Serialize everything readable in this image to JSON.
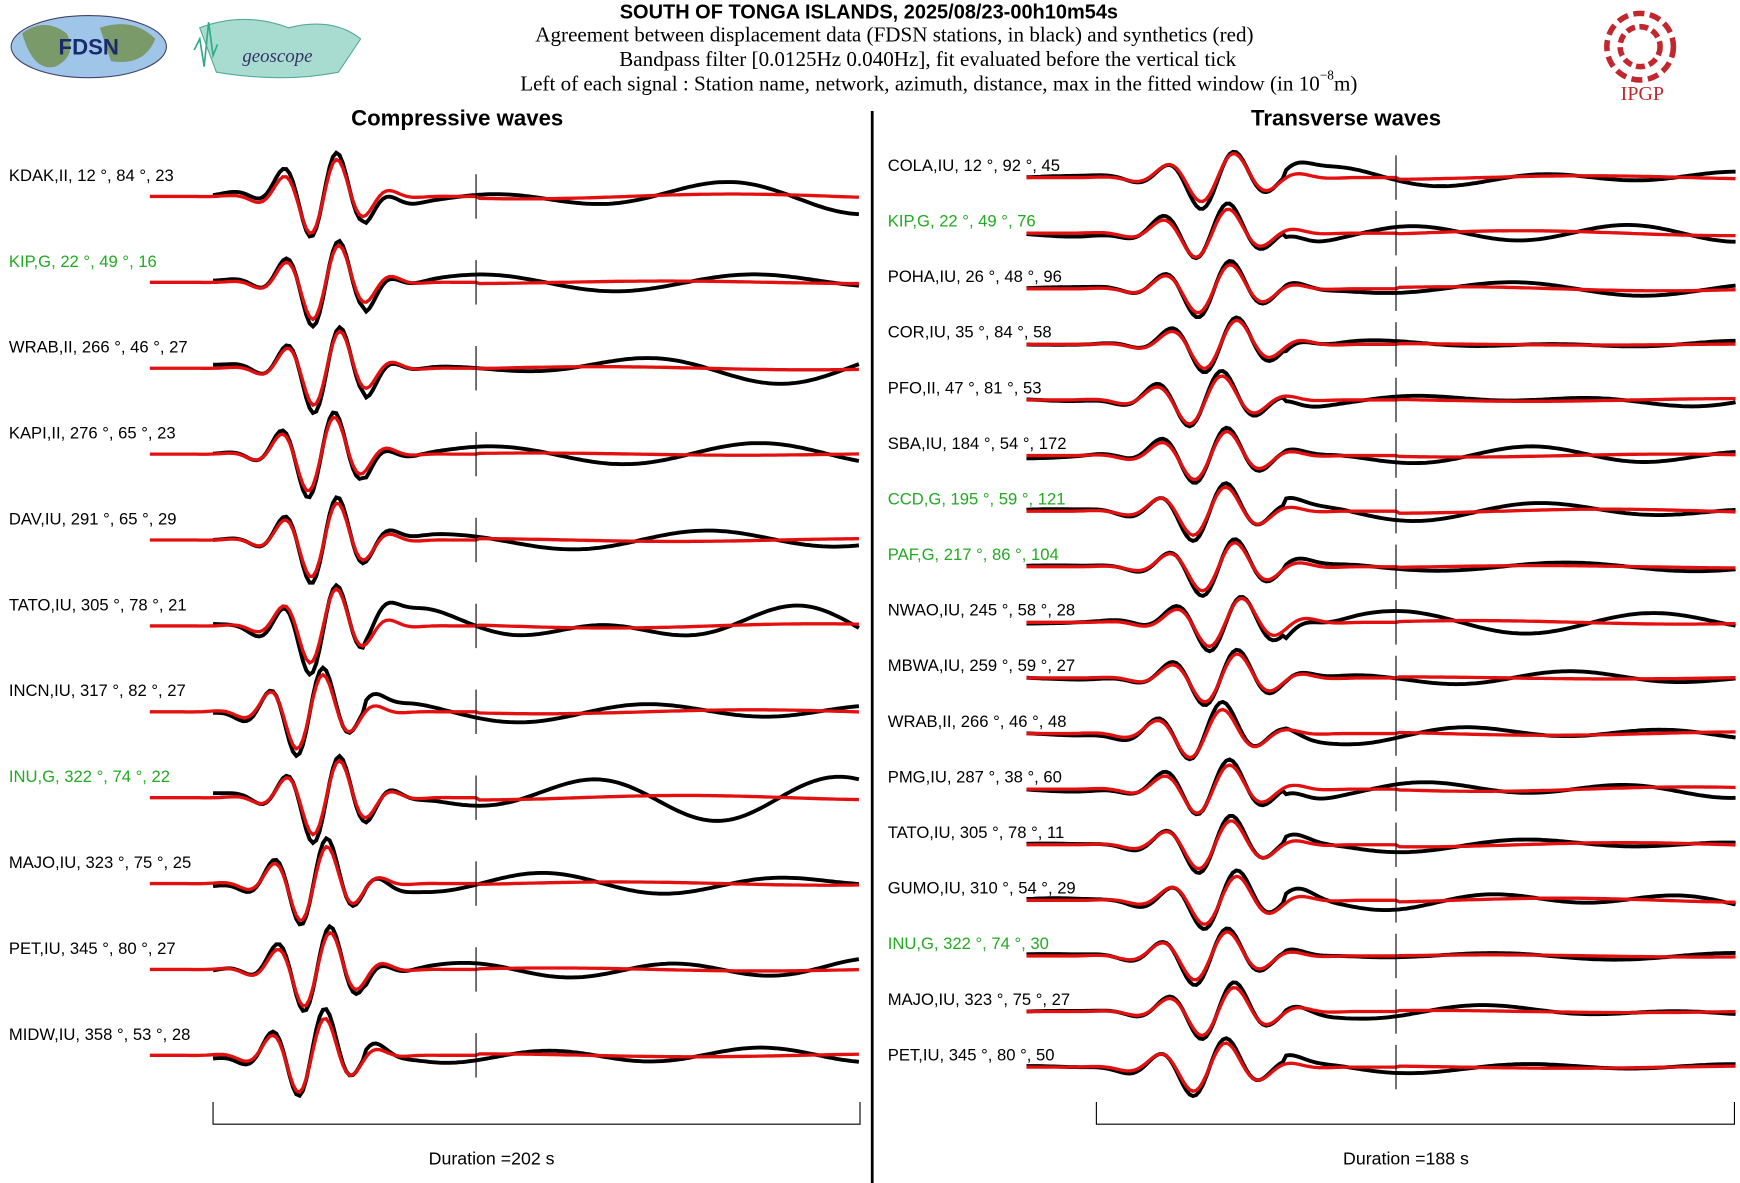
{
  "header": {
    "title": "SOUTH OF TONGA ISLANDS, 2025/08/23-00h10m54s",
    "lines": [
      "Agreement between displacement data (FDSN stations, in black) and synthetics (red)",
      "Bandpass filter [0.0125Hz 0.040Hz], fit evaluated before the vertical tick"
    ],
    "last_line": [
      "Left of each signal : Station name, network, azimuth, distance, max in the fitted window (in 10",
      "−8",
      "m)"
    ]
  },
  "logos": {
    "left": "FDSN",
    "middle": "geoscope",
    "right": "IPGP"
  },
  "panels": [
    {
      "title": "Compressive waves",
      "duration": "Duration =202 s",
      "stations": [
        {
          "label": "KDAK,II, 12 °, 84 °, 23",
          "color": "#000000"
        },
        {
          "label": "KIP,G, 22 °, 49 °, 16",
          "color": "#22aa22"
        },
        {
          "label": "WRAB,II, 266 °, 46 °, 27",
          "color": "#000000"
        },
        {
          "label": "KAPI,II, 276 °, 65 °, 23",
          "color": "#000000"
        },
        {
          "label": "DAV,IU, 291 °, 65 °, 29",
          "color": "#000000"
        },
        {
          "label": "TATO,IU, 305 °, 78 °, 21",
          "color": "#000000"
        },
        {
          "label": "INCN,IU, 317 °, 82 °, 27",
          "color": "#000000"
        },
        {
          "label": "INU,G, 322 °, 74 °, 22",
          "color": "#22aa22"
        },
        {
          "label": "MAJO,IU, 323 °, 75 °, 25",
          "color": "#000000"
        },
        {
          "label": "PET,IU, 345 °, 80 °, 27",
          "color": "#000000"
        },
        {
          "label": "MIDW,IU, 358 °, 53 °, 28",
          "color": "#000000"
        }
      ]
    },
    {
      "title": "Transverse waves",
      "duration": "Duration =188 s",
      "stations": [
        {
          "label": "COLA,IU, 12 °, 92 °, 45",
          "color": "#000000"
        },
        {
          "label": "KIP,G, 22 °, 49 °, 76",
          "color": "#22aa22"
        },
        {
          "label": "POHA,IU, 26 °, 48 °, 96",
          "color": "#000000"
        },
        {
          "label": "COR,IU, 35 °, 84 °, 58",
          "color": "#000000"
        },
        {
          "label": "PFO,II, 47 °, 81 °, 53",
          "color": "#000000"
        },
        {
          "label": "SBA,IU, 184 °, 54 °, 172",
          "color": "#000000"
        },
        {
          "label": "CCD,G, 195 °, 59 °, 121",
          "color": "#22aa22"
        },
        {
          "label": "PAF,G, 217 °, 86 °, 104",
          "color": "#22aa22"
        },
        {
          "label": "NWAO,IU, 245 °, 58 °, 28",
          "color": "#000000"
        },
        {
          "label": "MBWA,IU, 259 °, 59 °, 27",
          "color": "#000000"
        },
        {
          "label": "WRAB,II, 266 °, 46 °, 48",
          "color": "#000000"
        },
        {
          "label": "PMG,IU, 287 °, 38 °, 60",
          "color": "#000000"
        },
        {
          "label": "TATO,IU, 305 °, 78 °, 11",
          "color": "#000000"
        },
        {
          "label": "GUMO,IU, 310 °, 54 °, 29",
          "color": "#000000"
        },
        {
          "label": "INU,G, 322 °, 74 °, 30",
          "color": "#22aa22"
        },
        {
          "label": "MAJO,IU, 323 °, 75 °, 27",
          "color": "#000000"
        },
        {
          "label": "PET,IU, 345 °, 80 °, 50",
          "color": "#000000"
        }
      ]
    }
  ]
}
